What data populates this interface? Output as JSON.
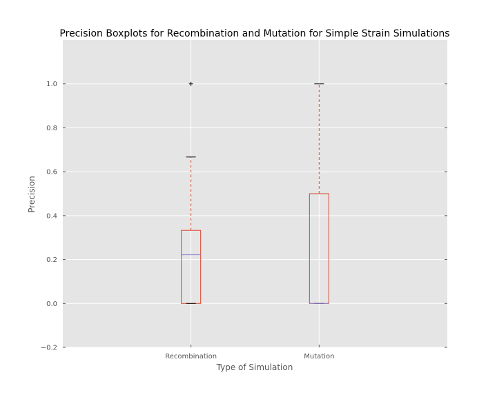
{
  "chart_data": {
    "type": "boxplot",
    "title": "Precision Boxplots for Recombination and Mutation for Simple Strain Simulations",
    "xlabel": "Type of Simulation",
    "ylabel": "Precision",
    "ylim": [
      -0.2,
      1.2
    ],
    "yticks": [
      -0.2,
      0.0,
      0.2,
      0.4,
      0.6,
      0.8,
      1.0
    ],
    "ytick_labels": [
      "−0.2",
      "0.0",
      "0.2",
      "0.4",
      "0.6",
      "0.8",
      "1.0"
    ],
    "categories": [
      "Recombination",
      "Mutation"
    ],
    "boxes": [
      {
        "category": "Recombination",
        "whisker_low": 0.0,
        "q1": 0.0,
        "median": 0.222,
        "q3": 0.333,
        "whisker_high": 0.667,
        "outliers": [
          1.0
        ]
      },
      {
        "category": "Mutation",
        "whisker_low": 0.0,
        "q1": 0.0,
        "median": 0.0,
        "q3": 0.5,
        "whisker_high": 1.0,
        "outliers": []
      }
    ],
    "grid": true,
    "colors": {
      "background": "#e5e5e5",
      "grid": "#ffffff",
      "box": "#d9452b",
      "whisker": "#d9452b",
      "median": "#8c7fd6",
      "cap": "#000000",
      "outlier": "#000000"
    }
  }
}
